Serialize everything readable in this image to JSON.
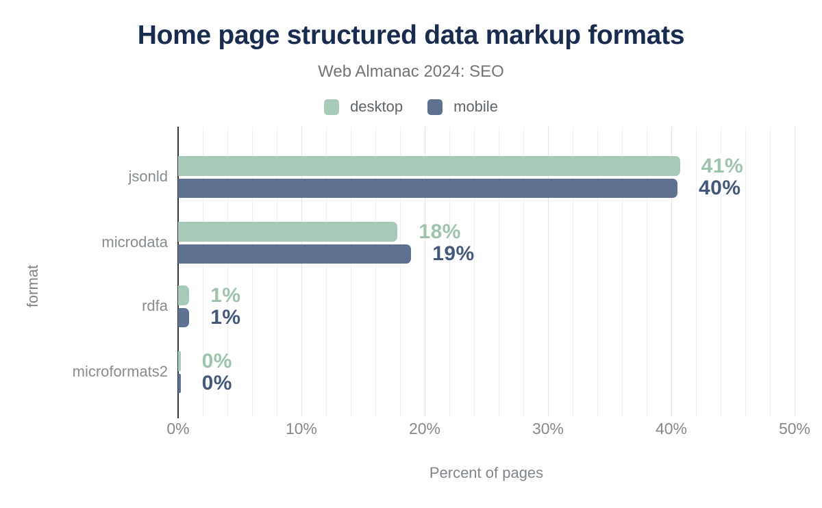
{
  "title": "Home page structured data markup formats",
  "subtitle": "Web Almanac 2024: SEO",
  "colors": {
    "title": "#1a2b50",
    "subtitle": "#747474",
    "desktop": "#a8cab8",
    "mobile": "#5e7190",
    "desktop_label": "#9ec4ae",
    "mobile_label": "#44587c",
    "axis_line": "#33373b",
    "grid_minor": "#f2f2f4",
    "grid_major": "#e6e6e9",
    "axis_text": "#85898d"
  },
  "chart_data": {
    "type": "bar",
    "orientation": "horizontal",
    "title": "Home page structured data markup formats",
    "subtitle": "Web Almanac 2024: SEO",
    "categories": [
      "jsonld",
      "microdata",
      "rdfa",
      "microformats2"
    ],
    "series": [
      {
        "name": "desktop",
        "values": [
          41,
          18,
          1,
          0
        ],
        "bar_length_pct": [
          40.7,
          17.8,
          0.9,
          0.2
        ],
        "data_labels": [
          "41%",
          "18%",
          "1%",
          "0%"
        ],
        "color": "#a8cab8",
        "label_color": "#9ec4ae"
      },
      {
        "name": "mobile",
        "values": [
          40,
          19,
          1,
          0
        ],
        "bar_length_pct": [
          40.5,
          18.9,
          0.9,
          0.2
        ],
        "data_labels": [
          "40%",
          "19%",
          "1%",
          "0%"
        ],
        "color": "#5e7190",
        "label_color": "#44587c"
      }
    ],
    "xlabel": "Percent of pages",
    "ylabel": "format",
    "xlim": [
      0,
      50
    ],
    "xticks": {
      "values": [
        0,
        10,
        20,
        30,
        40,
        50
      ],
      "labels": [
        "0%",
        "10%",
        "20%",
        "30%",
        "40%",
        "50%"
      ]
    },
    "grid": {
      "vertical": true,
      "minor_step_pct": 2,
      "major_step_pct": 10
    },
    "legend_position": "top"
  }
}
